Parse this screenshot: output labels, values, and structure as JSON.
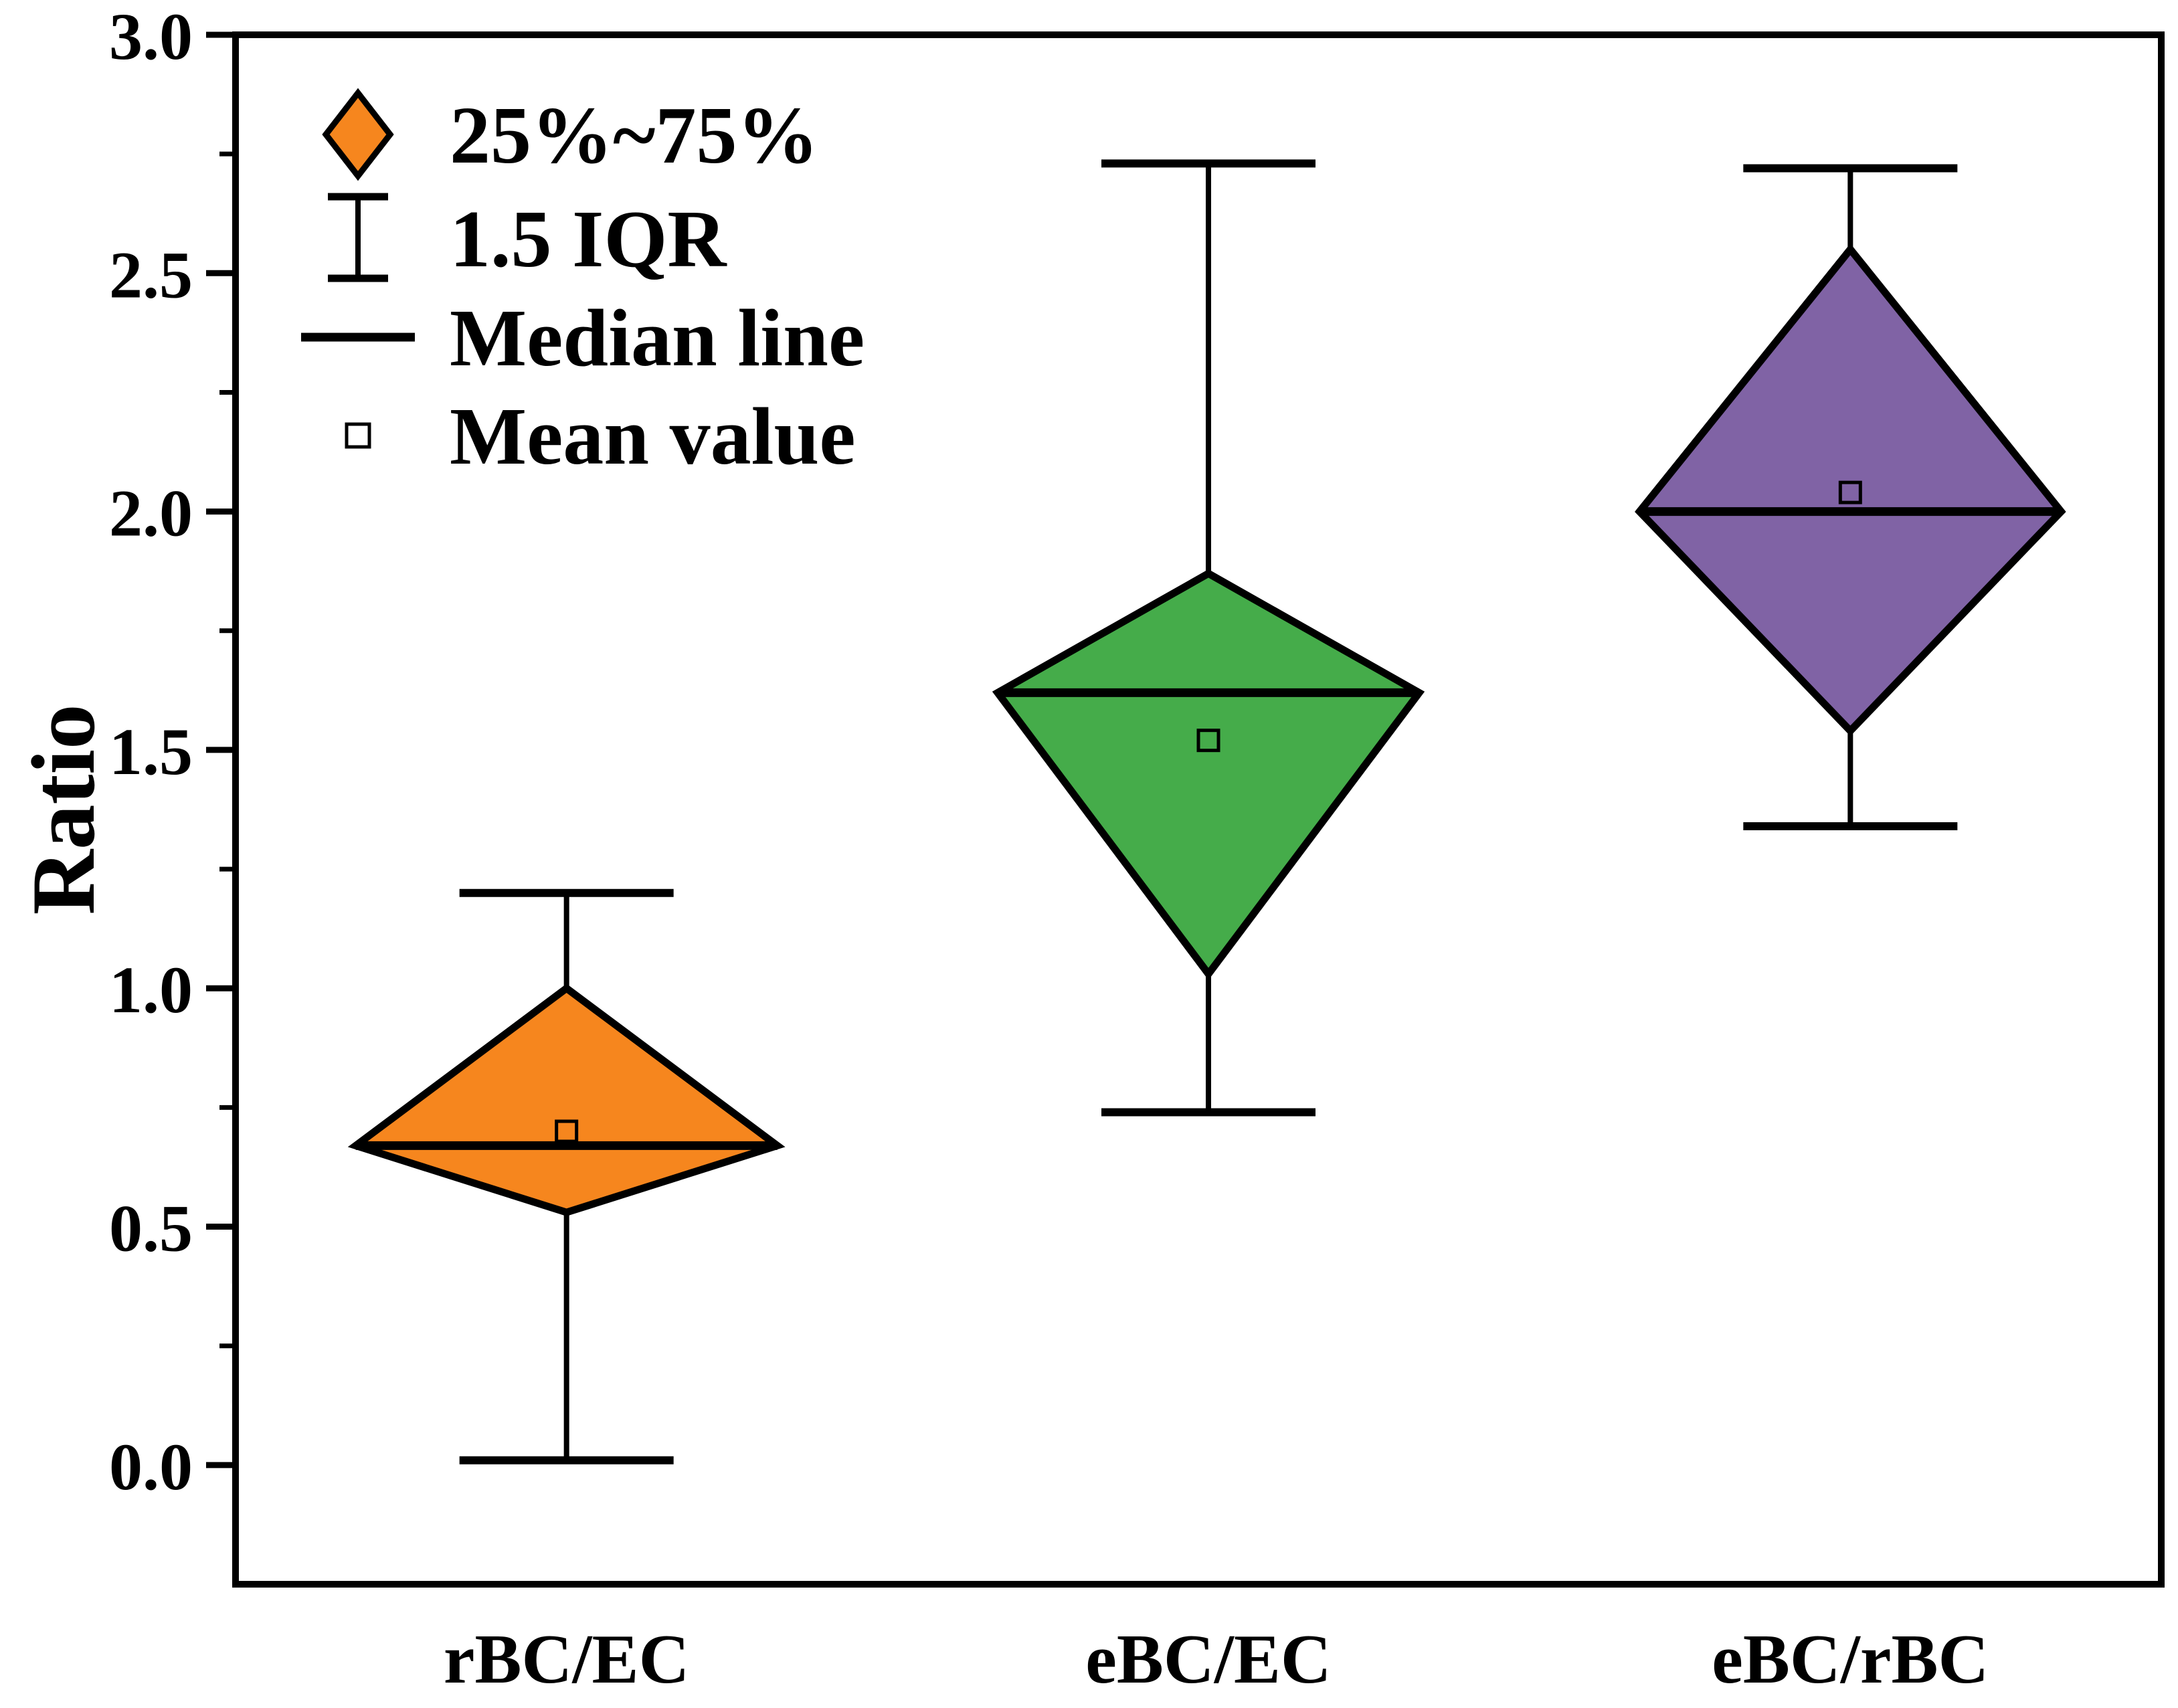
{
  "y_axis": {
    "label": "Ratio",
    "min": -0.25,
    "max": 3.0,
    "major_tick_values": [
      3.0,
      2.5,
      2.0,
      1.5,
      1.0,
      0.5,
      0.0
    ],
    "major_tick_labels": [
      "3.0",
      "2.5",
      "2.0",
      "1.5",
      "1.0",
      "0.5",
      "0.0"
    ],
    "minor_tick_values": [
      2.75,
      2.25,
      1.75,
      1.25,
      0.75,
      0.25
    ]
  },
  "x_axis": {
    "categories": [
      "rBC/EC",
      "eBC/EC",
      "eBC/rBC"
    ]
  },
  "legend": {
    "items": [
      {
        "icon": "quartile-diamond-icon",
        "label": "25%~75%"
      },
      {
        "icon": "error-bar-icon",
        "label": "1.5 IQR"
      },
      {
        "icon": "median-line-icon",
        "label": "Median line"
      },
      {
        "icon": "mean-square-icon",
        "label": "Mean value"
      }
    ]
  },
  "colors": {
    "axis": "#000000",
    "background": "#FFFFFF",
    "legend_diamond": "#F6861E"
  },
  "chart_data": {
    "type": "diamond-box",
    "title": "",
    "xlabel": "",
    "ylabel": "Ratio",
    "ylim": [
      -0.25,
      3.0
    ],
    "grid": false,
    "legend_position": "top-left",
    "categories": [
      "rBC/EC",
      "eBC/EC",
      "eBC/rBC"
    ],
    "series": [
      {
        "name": "rBC/EC",
        "color": "#F6861E",
        "whisker_low": 0.01,
        "q1": 0.53,
        "median": 0.67,
        "mean": 0.7,
        "q3": 1.0,
        "whisker_high": 1.2
      },
      {
        "name": "eBC/EC",
        "color": "#45AC4A",
        "whisker_low": 0.74,
        "q1": 1.03,
        "median": 1.62,
        "mean": 1.52,
        "q3": 1.87,
        "whisker_high": 2.73
      },
      {
        "name": "eBC/rBC",
        "color": "#8063A5",
        "whisker_low": 1.34,
        "q1": 1.54,
        "median": 2.0,
        "mean": 2.04,
        "q3": 2.55,
        "whisker_high": 2.72
      }
    ]
  }
}
